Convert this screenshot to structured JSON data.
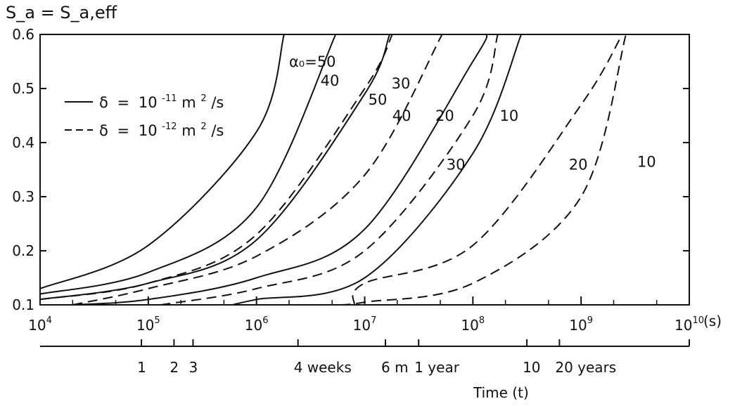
{
  "chart_data": {
    "type": "line",
    "ylabel": "S_a = S_a,eff",
    "xunit": "(s)",
    "x_scale": "log",
    "xlim": [
      10000,
      10000000000
    ],
    "ylim": [
      0.1,
      0.6
    ],
    "yticks": [
      "0.1",
      "0.2",
      "0.3",
      "0.4",
      "0.5",
      "0.6"
    ],
    "xtick_base": "10",
    "xtick_exponents": [
      "4",
      "5",
      "6",
      "7",
      "8",
      "9",
      "10"
    ],
    "legend": {
      "placement": "upper-left",
      "entries": [
        {
          "style": "solid",
          "symbol": "δ",
          "mantissa": "10",
          "exponent": "-11",
          "unit": "m",
          "unit_exp": "2",
          "unit_tail": "/s"
        },
        {
          "style": "dashed",
          "symbol": "δ",
          "mantissa": "10",
          "exponent": "-12",
          "unit": "m",
          "unit_exp": "2",
          "unit_tail": "/s"
        }
      ]
    },
    "series": [
      {
        "name": "α₀=50, δ=10⁻¹¹",
        "label": "α₀=50",
        "dash": false,
        "x": [
          10000,
          100000,
          1000000,
          1800000
        ],
        "y": [
          0.13,
          0.21,
          0.42,
          0.6
        ]
      },
      {
        "name": "α₀=40, δ=10⁻¹¹",
        "label": "40",
        "dash": false,
        "x": [
          10000,
          100000,
          1000000,
          5400000
        ],
        "y": [
          0.12,
          0.16,
          0.28,
          0.6
        ]
      },
      {
        "name": "α₀=50, δ=10⁻¹²",
        "label": "50",
        "dash": true,
        "x": [
          10000,
          100000,
          1000000,
          10000000,
          18000000
        ],
        "y": [
          0.11,
          0.14,
          0.23,
          0.5,
          0.6
        ]
      },
      {
        "name": "α₀=30, δ=10⁻¹¹",
        "label": "30",
        "dash": false,
        "x": [
          10000,
          100000,
          1000000,
          10000000,
          17000000
        ],
        "y": [
          0.11,
          0.14,
          0.22,
          0.49,
          0.6
        ]
      },
      {
        "name": "α₀=40, δ=10⁻¹²",
        "label": "40",
        "dash": true,
        "x": [
          20000,
          100000,
          1000000,
          10000000,
          52000000
        ],
        "y": [
          0.1,
          0.13,
          0.19,
          0.34,
          0.6
        ]
      },
      {
        "name": "α₀=20, δ=10⁻¹¹",
        "label": "20",
        "dash": false,
        "x": [
          20000,
          100000,
          1000000,
          10000000,
          100000000,
          135000000
        ],
        "y": [
          0.1,
          0.11,
          0.15,
          0.24,
          0.55,
          0.6
        ]
      },
      {
        "name": "α₀=30, δ=10⁻¹²",
        "label": "30",
        "dash": true,
        "x": [
          130000,
          1000000,
          10000000,
          100000000,
          170000000
        ],
        "y": [
          0.1,
          0.13,
          0.2,
          0.45,
          0.6
        ]
      },
      {
        "name": "α₀=10, δ=10⁻¹¹",
        "label": "10",
        "dash": false,
        "x": [
          600000,
          1000000,
          10000000,
          100000000,
          280000000
        ],
        "y": [
          0.1,
          0.11,
          0.15,
          0.38,
          0.6
        ]
      },
      {
        "name": "α₀=20, δ=10⁻¹²",
        "label": "20",
        "dash": true,
        "x": [
          8000000,
          10000000,
          100000000,
          1000000000,
          2400000000
        ],
        "y": [
          0.1,
          0.14,
          0.21,
          0.47,
          0.6
        ]
      },
      {
        "name": "α₀=10, δ=10⁻¹²",
        "label": "10",
        "dash": true,
        "x": [
          6000000,
          10000000,
          100000000,
          1000000000,
          2600000000
        ],
        "y": [
          0.1,
          0.105,
          0.14,
          0.3,
          0.6
        ]
      }
    ],
    "curve_labels": [
      {
        "text": "α₀=50",
        "x": 2000000,
        "y": 0.54
      },
      {
        "text": "40",
        "x": 3900000,
        "y": 0.505
      },
      {
        "text": "50",
        "x": 10800000,
        "y": 0.47
      },
      {
        "text": "30",
        "x": 17700000,
        "y": 0.5
      },
      {
        "text": "40",
        "x": 18000000,
        "y": 0.44
      },
      {
        "text": "20",
        "x": 45000000,
        "y": 0.44
      },
      {
        "text": "10",
        "x": 177000000,
        "y": 0.44
      },
      {
        "text": "30",
        "x": 57000000,
        "y": 0.35
      },
      {
        "text": "20",
        "x": 770000000,
        "y": 0.35
      },
      {
        "text": "10",
        "x": 3300000000,
        "y": 0.355
      }
    ],
    "time_axis": {
      "title": "Time (t)",
      "ticks": [
        {
          "label": "1",
          "seconds": 86400
        },
        {
          "label": "2",
          "seconds": 172800
        },
        {
          "label": "3",
          "seconds": 259200
        },
        {
          "label": "4 weeks",
          "seconds": 2419200
        },
        {
          "label": "6 m",
          "seconds": 15552000
        },
        {
          "label": "1 year",
          "seconds": 31536000
        },
        {
          "label": "10",
          "seconds": 315360000
        },
        {
          "label": "20 years",
          "seconds": 630720000
        }
      ]
    }
  }
}
